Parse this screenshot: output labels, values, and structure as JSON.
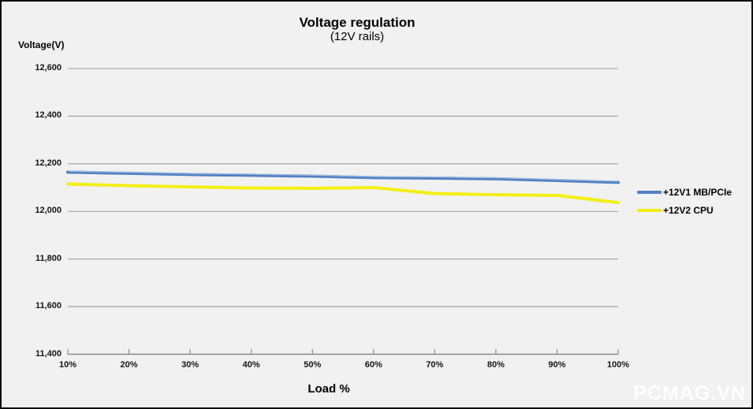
{
  "watermark": "PCMAG.VN",
  "chart_data": {
    "type": "line",
    "title": "Voltage regulation",
    "subtitle": "(12V rails)",
    "xlabel": "Load %",
    "ylabel": "Voltage(V)",
    "x_labels": [
      "10%",
      "20%",
      "30%",
      "40%",
      "50%",
      "60%",
      "70%",
      "80%",
      "90%",
      "100%"
    ],
    "ylim": [
      11400,
      12600
    ],
    "yticks": [
      12600,
      12400,
      12200,
      12000,
      11800,
      11600,
      11400
    ],
    "ytick_labels": [
      "12,600",
      "12,400",
      "12,200",
      "12,000",
      "11,800",
      "11,600",
      "11,400"
    ],
    "grid": true,
    "legend_position": "right",
    "series": [
      {
        "name": "+12V1 MB/PCIe",
        "color": "#5181C2",
        "highlight": "#A9C3E3",
        "values": [
          12165,
          12160,
          12155,
          12152,
          12148,
          12142,
          12140,
          12137,
          12130,
          12122
        ]
      },
      {
        "name": "+12V2 CPU",
        "color": "#F3EE13",
        "values": [
          12115,
          12108,
          12103,
          12098,
          12097,
          12100,
          12075,
          12070,
          12067,
          12037
        ]
      }
    ],
    "colors": {
      "background": "#F1F1F1",
      "gridline": "#9D9D9D",
      "axis": "#8A8A8A",
      "text": "#111111",
      "watermark": "#FFFFFF"
    }
  }
}
